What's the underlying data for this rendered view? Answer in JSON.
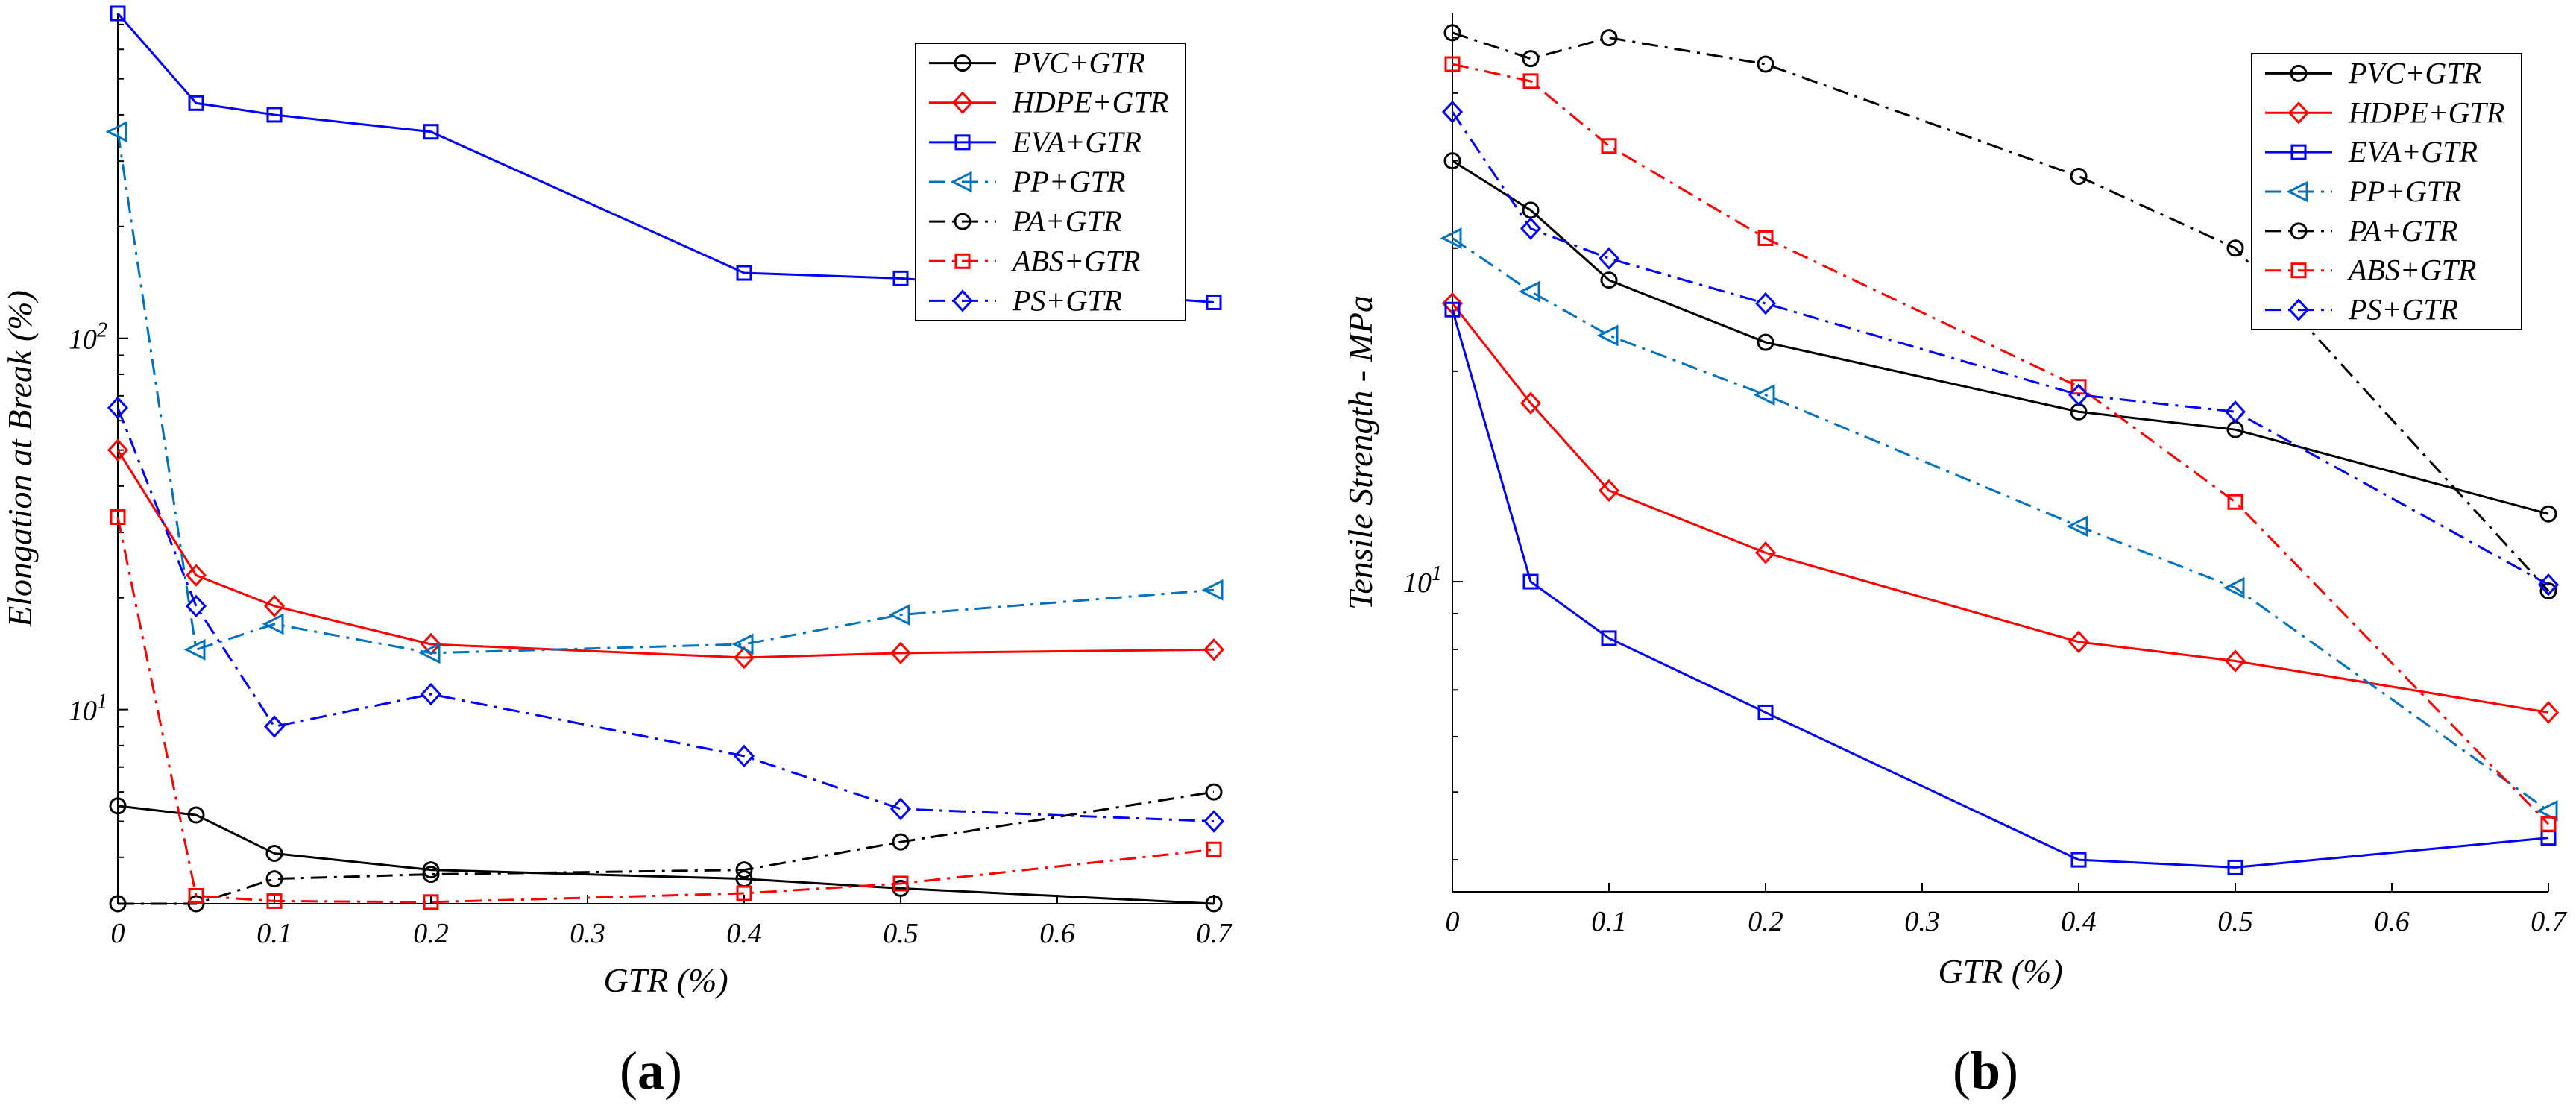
{
  "chart_data": [
    {
      "id": "a",
      "type": "line",
      "yscale": "log",
      "panel_label_open": "(",
      "panel_label_letter": "a",
      "panel_label_close": ")",
      "title": "",
      "xlabel": "GTR (%)",
      "ylabel": "Elongation at Break (%)",
      "xlim": [
        0,
        0.7
      ],
      "ylim": [
        3,
        750
      ],
      "x_ticks": [
        0,
        0.1,
        0.2,
        0.3,
        0.4,
        0.5,
        0.6,
        0.7
      ],
      "x_tick_labels": [
        "0",
        "0.1",
        "0.2",
        "0.3",
        "0.4",
        "0.5",
        "0.6",
        "0.7"
      ],
      "y_ticks": [
        10,
        100
      ],
      "y_tick_labels": [
        {
          "base": "10",
          "exp": "1"
        },
        {
          "base": "10",
          "exp": "2"
        }
      ],
      "legend_position": "top-right",
      "series": [
        {
          "name": "PVC+GTR",
          "color": "#000000",
          "dash": "solid",
          "marker": "circle",
          "x": [
            0,
            0.05,
            0.1,
            0.2,
            0.4,
            0.5,
            0.7
          ],
          "y": [
            5.5,
            5.2,
            4.1,
            3.7,
            3.5,
            3.3,
            3.0
          ]
        },
        {
          "name": "HDPE+GTR",
          "color": "#ff0000",
          "dash": "solid",
          "marker": "diamond",
          "x": [
            0,
            0.05,
            0.1,
            0.2,
            0.4,
            0.5,
            0.7
          ],
          "y": [
            50,
            23,
            19,
            15,
            13.8,
            14.2,
            14.5
          ]
        },
        {
          "name": "EVA+GTR",
          "color": "#0000ff",
          "dash": "solid",
          "marker": "square",
          "x": [
            0,
            0.05,
            0.1,
            0.2,
            0.4,
            0.5,
            0.7
          ],
          "y": [
            750,
            430,
            400,
            360,
            150,
            145,
            125
          ]
        },
        {
          "name": "PP+GTR",
          "color": "#0072bd",
          "dash": "dashdot",
          "marker": "triangle-left",
          "x": [
            0,
            0.05,
            0.1,
            0.2,
            0.4,
            0.5,
            0.7
          ],
          "y": [
            360,
            14.5,
            17,
            14.2,
            15,
            18,
            21
          ]
        },
        {
          "name": "PA+GTR",
          "color": "#000000",
          "dash": "dashdot",
          "marker": "circle",
          "x": [
            0,
            0.05,
            0.1,
            0.2,
            0.4,
            0.5,
            0.7
          ],
          "y": [
            3.0,
            3.0,
            3.5,
            3.6,
            3.7,
            4.4,
            6.0
          ]
        },
        {
          "name": "ABS+GTR",
          "color": "#ff0000",
          "dash": "dashdot",
          "marker": "square",
          "x": [
            0,
            0.05,
            0.1,
            0.2,
            0.4,
            0.5,
            0.7
          ],
          "y": [
            33,
            3.15,
            3.05,
            3.03,
            3.2,
            3.4,
            4.2
          ]
        },
        {
          "name": "PS+GTR",
          "color": "#0000ff",
          "dash": "dashdot",
          "marker": "diamond",
          "x": [
            0,
            0.05,
            0.1,
            0.2,
            0.4,
            0.5,
            0.7
          ],
          "y": [
            65,
            19,
            9,
            11,
            7.5,
            5.4,
            5.0
          ]
        }
      ]
    },
    {
      "id": "b",
      "type": "line",
      "yscale": "log",
      "panel_label_open": "(",
      "panel_label_letter": "b",
      "panel_label_close": ")",
      "title": "",
      "xlabel": "GTR (%)",
      "ylabel": "Tensile Strength - MPa",
      "xlim": [
        0,
        0.7
      ],
      "ylim": [
        3.6,
        65
      ],
      "x_ticks": [
        0,
        0.1,
        0.2,
        0.3,
        0.4,
        0.5,
        0.6,
        0.7
      ],
      "x_tick_labels": [
        "0",
        "0.1",
        "0.2",
        "0.3",
        "0.4",
        "0.5",
        "0.6",
        "0.7"
      ],
      "y_ticks": [
        10
      ],
      "y_tick_labels": [
        {
          "base": "10",
          "exp": "1"
        }
      ],
      "legend_position": "top-right",
      "series": [
        {
          "name": "PVC+GTR",
          "color": "#000000",
          "dash": "solid",
          "marker": "circle",
          "x": [
            0,
            0.05,
            0.1,
            0.2,
            0.4,
            0.5,
            0.7
          ],
          "y": [
            40,
            34,
            27,
            22,
            17.5,
            16.5,
            12.5
          ]
        },
        {
          "name": "HDPE+GTR",
          "color": "#ff0000",
          "dash": "solid",
          "marker": "diamond",
          "x": [
            0,
            0.05,
            0.1,
            0.2,
            0.4,
            0.5,
            0.7
          ],
          "y": [
            25,
            18,
            13.5,
            11,
            8.2,
            7.7,
            6.5
          ]
        },
        {
          "name": "EVA+GTR",
          "color": "#0000ff",
          "dash": "solid",
          "marker": "square",
          "x": [
            0,
            0.05,
            0.1,
            0.2,
            0.4,
            0.5,
            0.7
          ],
          "y": [
            24.5,
            10,
            8.3,
            6.5,
            4.0,
            3.9,
            4.3
          ]
        },
        {
          "name": "PP+GTR",
          "color": "#0072bd",
          "dash": "dashdot",
          "marker": "triangle-left",
          "x": [
            0,
            0.05,
            0.1,
            0.2,
            0.4,
            0.5,
            0.7
          ],
          "y": [
            31,
            26,
            22.5,
            18.5,
            12,
            9.8,
            4.7
          ]
        },
        {
          "name": "PA+GTR",
          "color": "#000000",
          "dash": "dashdot",
          "marker": "circle",
          "x": [
            0,
            0.05,
            0.1,
            0.2,
            0.4,
            0.5,
            0.7
          ],
          "y": [
            61,
            56,
            60,
            55,
            38,
            30,
            9.7
          ]
        },
        {
          "name": "ABS+GTR",
          "color": "#ff0000",
          "dash": "dashdot",
          "marker": "square",
          "x": [
            0,
            0.05,
            0.1,
            0.2,
            0.4,
            0.5,
            0.7
          ],
          "y": [
            55,
            52,
            42,
            31,
            19,
            13,
            4.5
          ]
        },
        {
          "name": "PS+GTR",
          "color": "#0000ff",
          "dash": "dashdot",
          "marker": "diamond",
          "x": [
            0,
            0.05,
            0.1,
            0.2,
            0.4,
            0.5,
            0.7
          ],
          "y": [
            47,
            32,
            29,
            25,
            18.5,
            17.5,
            9.9
          ]
        }
      ]
    }
  ]
}
